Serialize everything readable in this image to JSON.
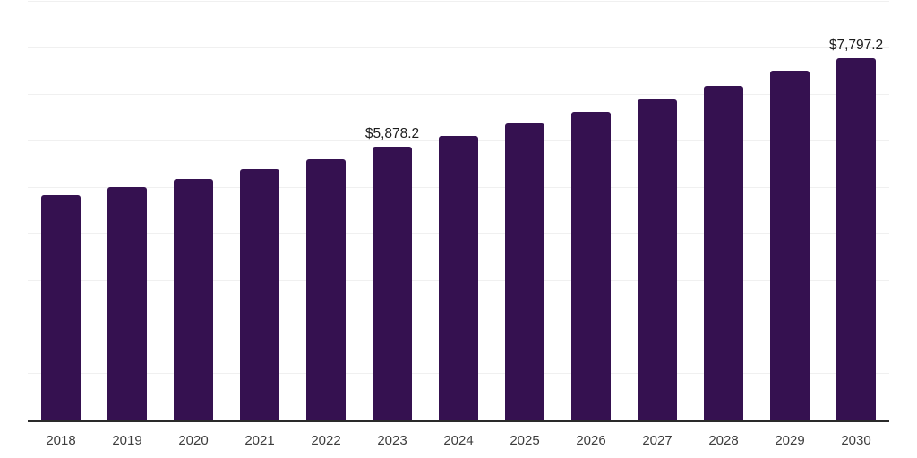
{
  "chart_data": {
    "type": "bar",
    "title": "",
    "xlabel": "",
    "ylabel": "",
    "categories": [
      "2018",
      "2019",
      "2020",
      "2021",
      "2022",
      "2023",
      "2024",
      "2025",
      "2026",
      "2027",
      "2028",
      "2029",
      "2030"
    ],
    "values": [
      4840,
      5010,
      5200,
      5410,
      5620,
      5878.2,
      6115,
      6380,
      6630,
      6900,
      7190,
      7510,
      7797.2
    ],
    "data_labels": [
      "",
      "",
      "",
      "",
      "",
      "$5,878.2",
      "",
      "",
      "",
      "",
      "",
      "",
      "$7,797.2"
    ],
    "ylim": [
      0,
      9000
    ],
    "grid_step": 1000,
    "grid": true,
    "legend_position": "none",
    "bar_color": "#351150",
    "grid_color": "#f0f0f0",
    "axis_color": "#2a2a2a",
    "tick_label_color": "#3d3d3d",
    "value_label_color": "#1c1c1c"
  }
}
